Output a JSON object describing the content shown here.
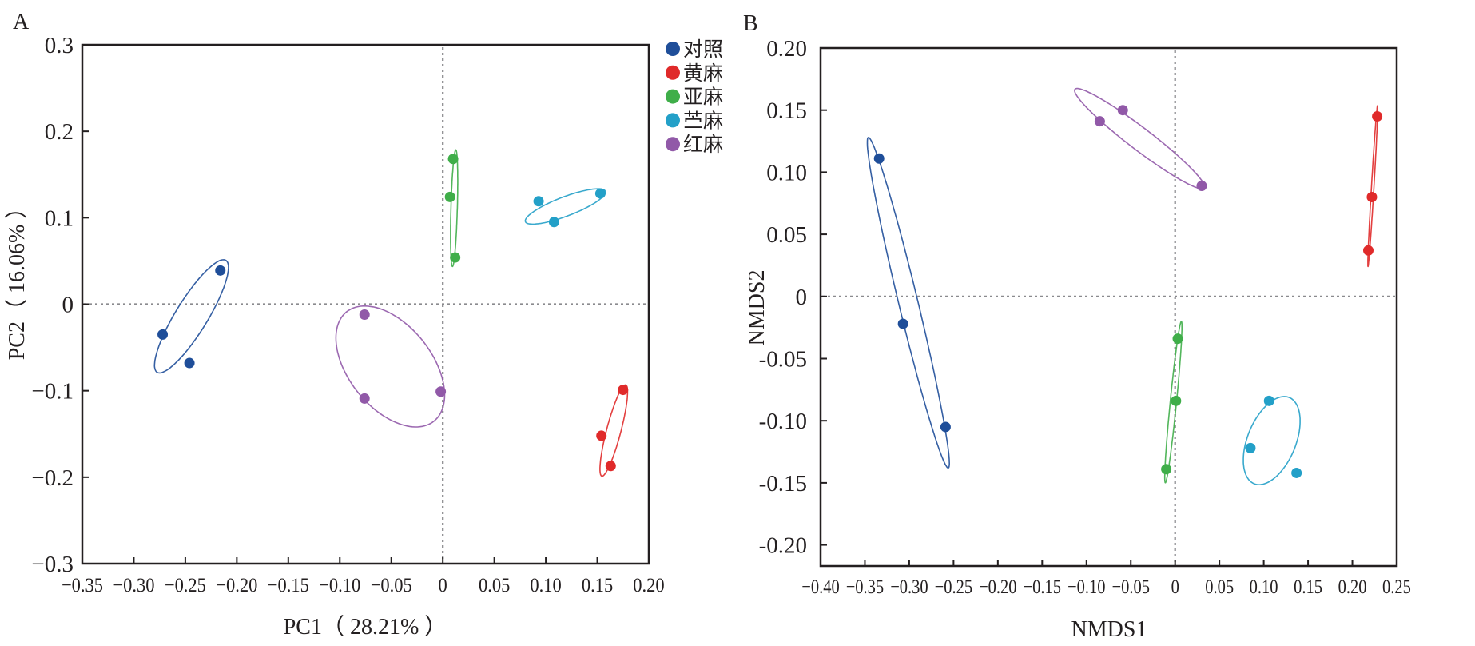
{
  "chart_data": [
    {
      "id": "A",
      "panel_label": "A",
      "type": "scatter",
      "subtype": "PCA with confidence ellipses",
      "xlabel": "PC1（ 28.21% ）",
      "ylabel": "PC2（ 16.06% ）",
      "xlim": [
        -0.35,
        0.2
      ],
      "ylim": [
        -0.3,
        0.3
      ],
      "xticks": [
        -0.35,
        -0.3,
        -0.25,
        -0.2,
        -0.15,
        -0.1,
        -0.05,
        0,
        0.05,
        0.1,
        0.15,
        0.2
      ],
      "xtick_labels": [
        "−0.35",
        "−0.30",
        "−0.25",
        "−0.20",
        "−0.15",
        "−0.10",
        "−0.05",
        "0",
        "0.05",
        "0.10",
        "0.15",
        "0.20"
      ],
      "yticks": [
        0.3,
        0.2,
        0.1,
        0,
        -0.1,
        -0.2,
        -0.3
      ],
      "ytick_labels": [
        "0.3",
        "0.2",
        "0.1",
        "0",
        "−0.1",
        "−0.2",
        "−0.3"
      ],
      "reference_lines": {
        "x": 0,
        "y": 0,
        "style": "dotted"
      },
      "legend": {
        "placement": "top-right-outside",
        "entries": [
          "对照",
          "黄麻",
          "亚麻",
          "苎麻",
          "红麻"
        ]
      },
      "series": [
        {
          "name": "对照",
          "color": "#1f4e99",
          "points": [
            [
              -0.216,
              0.039
            ],
            [
              -0.272,
              -0.035
            ],
            [
              -0.246,
              -0.068
            ]
          ],
          "ellipse": {
            "center": [
              -0.244,
              -0.014
            ],
            "major": [
              0.0334,
              0.0647
            ],
            "minor": [
              0.0132,
              -0.0097
            ]
          }
        },
        {
          "name": "黄麻",
          "color": "#e02a2a",
          "points": [
            [
              0.175,
              -0.099
            ],
            [
              0.154,
              -0.152
            ],
            [
              0.163,
              -0.187
            ]
          ],
          "ellipse": {
            "center": [
              0.166,
              -0.146
            ],
            "major": [
              0.0116,
              0.0527
            ],
            "minor": [
              0.0067,
              -0.0021
            ]
          }
        },
        {
          "name": "亚麻",
          "color": "#3fae49",
          "points": [
            [
              0.01,
              0.168
            ],
            [
              0.007,
              0.124
            ],
            [
              0.012,
              0.054
            ]
          ],
          "ellipse": {
            "center": [
              0.011,
              0.111
            ],
            "major": [
              0.0016,
              0.0675
            ],
            "minor": [
              0.0031,
              0.0
            ]
          }
        },
        {
          "name": "苎麻",
          "color": "#23a0c8",
          "points": [
            [
              0.093,
              0.119
            ],
            [
              0.108,
              0.095
            ],
            [
              0.153,
              0.128
            ]
          ],
          "ellipse": {
            "center": [
              0.119,
              0.113
            ],
            "major": [
              0.0388,
              0.0176
            ],
            "minor": [
              0.0033,
              -0.0104
            ]
          }
        },
        {
          "name": "红麻",
          "color": "#9159a8",
          "points": [
            [
              -0.076,
              -0.012
            ],
            [
              -0.076,
              -0.109
            ],
            [
              -0.002,
              -0.101
            ]
          ],
          "ellipse": {
            "center": [
              -0.051,
              -0.072
            ],
            "major": [
              0.0427,
              -0.0629
            ],
            "minor": [
              0.031,
              0.0305
            ]
          }
        }
      ]
    },
    {
      "id": "B",
      "panel_label": "B",
      "type": "scatter",
      "subtype": "NMDS with confidence ellipses",
      "xlabel": "NMDS1",
      "ylabel": "NMDS2",
      "xlim": [
        -0.4,
        0.25
      ],
      "ylim": [
        -0.217,
        0.2
      ],
      "xticks": [
        -0.4,
        -0.35,
        -0.3,
        -0.25,
        -0.2,
        -0.15,
        -0.1,
        -0.05,
        0,
        0.05,
        0.1,
        0.15,
        0.2,
        0.25
      ],
      "xtick_labels": [
        "−0.40",
        "−0.35",
        "−0.30",
        "−0.25",
        "−0.20",
        "−0.15",
        "−0.10",
        "−0.05",
        "0",
        "0.05",
        "0.10",
        "0.15",
        "0.20",
        "0.25"
      ],
      "yticks": [
        0.2,
        0.15,
        0.1,
        0.05,
        0,
        -0.05,
        -0.1,
        -0.15,
        -0.2
      ],
      "ytick_labels": [
        "0.20",
        "0.15",
        "0.10",
        "0.05",
        "0",
        "-0.05",
        "-0.10",
        "-0.15",
        "-0.20"
      ],
      "reference_lines": {
        "x": 0,
        "y": 0,
        "style": "dotted"
      },
      "series": [
        {
          "name": "对照",
          "color": "#1f4e99",
          "points": [
            [
              -0.334,
              0.111
            ],
            [
              -0.307,
              -0.022
            ],
            [
              -0.259,
              -0.105
            ]
          ],
          "ellipse": {
            "center": [
              -0.301,
              -0.005
            ],
            "major": [
              0.0451,
              -0.133
            ],
            "minor": [
              0.0105,
              0.0018
            ]
          }
        },
        {
          "name": "黄麻",
          "color": "#e02a2a",
          "points": [
            [
              0.228,
              0.145
            ],
            [
              0.222,
              0.08
            ],
            [
              0.218,
              0.037
            ]
          ],
          "ellipse": {
            "center": [
              0.223,
              0.089
            ],
            "major": [
              0.0054,
              0.0649
            ],
            "minor": [
              0.0014,
              0.0
            ]
          }
        },
        {
          "name": "亚麻",
          "color": "#3fae49",
          "points": [
            [
              0.003,
              -0.034
            ],
            [
              0.001,
              -0.084
            ],
            [
              -0.01,
              -0.139
            ]
          ],
          "ellipse": {
            "center": [
              -0.002,
              -0.085
            ],
            "major": [
              0.009,
              0.0649
            ],
            "minor": [
              0.0036,
              0.0004
            ]
          }
        },
        {
          "name": "苎麻",
          "color": "#23a0c8",
          "points": [
            [
              0.106,
              -0.084
            ],
            [
              0.085,
              -0.122
            ],
            [
              0.137,
              -0.142
            ]
          ],
          "ellipse": {
            "center": [
              0.109,
              -0.116
            ],
            "major": [
              0.0198,
              0.0347
            ],
            "minor": [
              0.0252,
              -0.0073
            ]
          }
        },
        {
          "name": "红麻",
          "color": "#9159a8",
          "points": [
            [
              -0.085,
              0.141
            ],
            [
              -0.059,
              0.15
            ],
            [
              0.03,
              0.089
            ]
          ],
          "ellipse": {
            "center": [
              -0.04,
              0.127
            ],
            "major": [
              0.073,
              -0.0398
            ],
            "minor": [
              0.0077,
              0.0071
            ]
          }
        }
      ]
    }
  ]
}
